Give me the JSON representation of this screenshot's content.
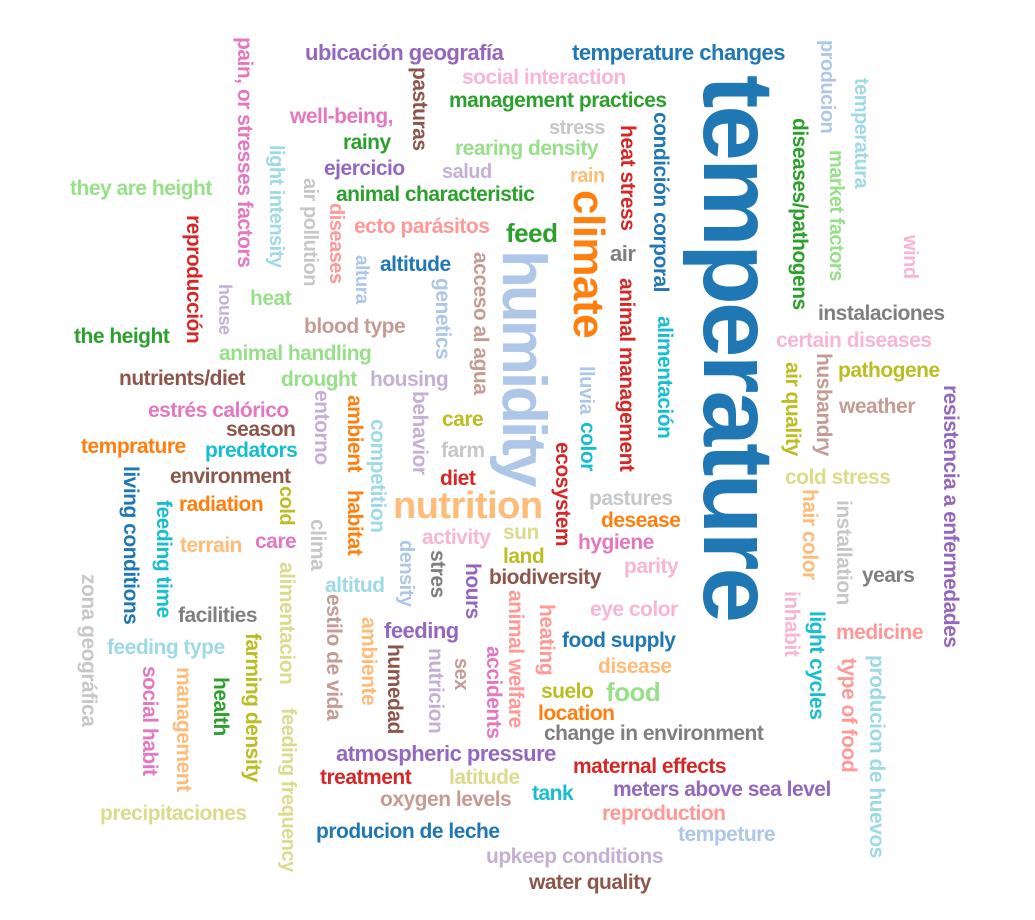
{
  "words": [
    {
      "text": "temperature",
      "color": "#1f77b4",
      "vertical": true
    },
    {
      "text": "humidity",
      "color": "#aec7e8",
      "vertical": true
    },
    {
      "text": "climate",
      "color": "#ff7f0e",
      "vertical": true
    },
    {
      "text": "nutrition",
      "color": "#ffbb78",
      "vertical": false
    },
    {
      "text": "ubicación geografía",
      "color": "#9467bd",
      "vertical": false
    },
    {
      "text": "temperature changes",
      "color": "#1f77b4",
      "vertical": false
    },
    {
      "text": "social interaction",
      "color": "#f7b6d2",
      "vertical": false
    },
    {
      "text": "management practices",
      "color": "#2ca02c",
      "vertical": false
    },
    {
      "text": "well-being,",
      "color": "#e377c2",
      "vertical": false
    },
    {
      "text": "stress",
      "color": "#c7c7c7",
      "vertical": false
    },
    {
      "text": "rainy",
      "color": "#2ca02c",
      "vertical": false
    },
    {
      "text": "rearing density",
      "color": "#98df8a",
      "vertical": false
    },
    {
      "text": "ejercicio",
      "color": "#9467bd",
      "vertical": false
    },
    {
      "text": "salud",
      "color": "#c5b0d5",
      "vertical": false
    },
    {
      "text": "rain",
      "color": "#ffbb78",
      "vertical": false
    },
    {
      "text": "they are height",
      "color": "#98df8a",
      "vertical": false
    },
    {
      "text": "animal characteristic",
      "color": "#2ca02c",
      "vertical": false
    },
    {
      "text": "ecto parásitos",
      "color": "#ff9896",
      "vertical": false
    },
    {
      "text": "feed",
      "color": "#2ca02c",
      "vertical": false
    },
    {
      "text": "air",
      "color": "#7f7f7f",
      "vertical": false
    },
    {
      "text": "altitude",
      "color": "#1f77b4",
      "vertical": false
    },
    {
      "text": "heat",
      "color": "#98df8a",
      "vertical": false
    },
    {
      "text": "blood type",
      "color": "#c49c94",
      "vertical": false
    },
    {
      "text": "the height",
      "color": "#2ca02c",
      "vertical": false
    },
    {
      "text": "animal handling",
      "color": "#98df8a",
      "vertical": false
    },
    {
      "text": "nutrients/diet",
      "color": "#8c564b",
      "vertical": false
    },
    {
      "text": "drought",
      "color": "#98df8a",
      "vertical": false
    },
    {
      "text": "housing",
      "color": "#c5b0d5",
      "vertical": false
    },
    {
      "text": "estrés calórico",
      "color": "#e377c2",
      "vertical": false
    },
    {
      "text": "season",
      "color": "#8c564b",
      "vertical": false
    },
    {
      "text": "care",
      "color": "#bcbd22",
      "vertical": false
    },
    {
      "text": "temprature",
      "color": "#ff7f0e",
      "vertical": false
    },
    {
      "text": "predators",
      "color": "#17becf",
      "vertical": false
    },
    {
      "text": "farm",
      "color": "#c7c7c7",
      "vertical": false
    },
    {
      "text": "environment",
      "color": "#8c564b",
      "vertical": false
    },
    {
      "text": "diet",
      "color": "#d62728",
      "vertical": false
    },
    {
      "text": "radiation",
      "color": "#ff7f0e",
      "vertical": false
    },
    {
      "text": "activity",
      "color": "#f7b6d2",
      "vertical": false
    },
    {
      "text": "sun",
      "color": "#dbdb8d",
      "vertical": false
    },
    {
      "text": "care",
      "color": "#e377c2",
      "vertical": false
    },
    {
      "text": "terrain",
      "color": "#ffbb78",
      "vertical": false
    },
    {
      "text": "land",
      "color": "#bcbd22",
      "vertical": false
    },
    {
      "text": "altitud",
      "color": "#9edae5",
      "vertical": false
    },
    {
      "text": "biodiversity",
      "color": "#8c564b",
      "vertical": false
    },
    {
      "text": "hygiene",
      "color": "#e377c2",
      "vertical": false
    },
    {
      "text": "parity",
      "color": "#f7b6d2",
      "vertical": false
    },
    {
      "text": "pastures",
      "color": "#c7c7c7",
      "vertical": false
    },
    {
      "text": "desease",
      "color": "#ff7f0e",
      "vertical": false
    },
    {
      "text": "facilities",
      "color": "#7f7f7f",
      "vertical": false
    },
    {
      "text": "feeding",
      "color": "#9467bd",
      "vertical": false
    },
    {
      "text": "feeding type",
      "color": "#9edae5",
      "vertical": false
    },
    {
      "text": "eye color",
      "color": "#f7b6d2",
      "vertical": false
    },
    {
      "text": "food supply",
      "color": "#1f77b4",
      "vertical": false
    },
    {
      "text": "disease",
      "color": "#ffbb78",
      "vertical": false
    },
    {
      "text": "suelo",
      "color": "#bcbd22",
      "vertical": false
    },
    {
      "text": "food",
      "color": "#98df8a",
      "vertical": false
    },
    {
      "text": "location",
      "color": "#ff7f0e",
      "vertical": false
    },
    {
      "text": "change in environment",
      "color": "#7f7f7f",
      "vertical": false
    },
    {
      "text": "atmospheric pressure",
      "color": "#9467bd",
      "vertical": false
    },
    {
      "text": "treatment",
      "color": "#d62728",
      "vertical": false
    },
    {
      "text": "latitude",
      "color": "#dbdb8d",
      "vertical": false
    },
    {
      "text": "maternal effects",
      "color": "#d62728",
      "vertical": false
    },
    {
      "text": "oxygen levels",
      "color": "#c49c94",
      "vertical": false
    },
    {
      "text": "tank",
      "color": "#17becf",
      "vertical": false
    },
    {
      "text": "meters above sea level",
      "color": "#9467bd",
      "vertical": false
    },
    {
      "text": "precipitaciones",
      "color": "#dbdb8d",
      "vertical": false
    },
    {
      "text": "reproduction",
      "color": "#ff9896",
      "vertical": false
    },
    {
      "text": "producion de leche",
      "color": "#1f77b4",
      "vertical": false
    },
    {
      "text": "tempeture",
      "color": "#aec7e8",
      "vertical": false
    },
    {
      "text": "upkeep conditions",
      "color": "#c5b0d5",
      "vertical": false
    },
    {
      "text": "water quality",
      "color": "#8c564b",
      "vertical": false
    },
    {
      "text": "instalaciones",
      "color": "#7f7f7f",
      "vertical": false
    },
    {
      "text": "certain diseases",
      "color": "#f7b6d2",
      "vertical": false
    },
    {
      "text": "pathogene",
      "color": "#bcbd22",
      "vertical": false
    },
    {
      "text": "weather",
      "color": "#c49c94",
      "vertical": false
    },
    {
      "text": "cold stress",
      "color": "#dbdb8d",
      "vertical": false
    },
    {
      "text": "years",
      "color": "#7f7f7f",
      "vertical": false
    },
    {
      "text": "medicine",
      "color": "#ff9896",
      "vertical": false
    },
    {
      "text": "pain, or stresses factors",
      "color": "#e377c2",
      "vertical": true
    },
    {
      "text": "pasturas",
      "color": "#8c564b",
      "vertical": true
    },
    {
      "text": "light intensity",
      "color": "#9edae5",
      "vertical": true
    },
    {
      "text": "air pollution",
      "color": "#c7c7c7",
      "vertical": true
    },
    {
      "text": "diseases",
      "color": "#ff9896",
      "vertical": true
    },
    {
      "text": "altura",
      "color": "#aec7e8",
      "vertical": true
    },
    {
      "text": "genetics",
      "color": "#aec7e8",
      "vertical": true
    },
    {
      "text": "acceso al agua",
      "color": "#c49c94",
      "vertical": true
    },
    {
      "text": "reproducción",
      "color": "#d62728",
      "vertical": true
    },
    {
      "text": "house",
      "color": "#c5b0d5",
      "vertical": true
    },
    {
      "text": "heat stress",
      "color": "#d62728",
      "vertical": true
    },
    {
      "text": "condición corporal",
      "color": "#1f77b4",
      "vertical": true
    },
    {
      "text": "animal management",
      "color": "#d62728",
      "vertical": true
    },
    {
      "text": "alimentación",
      "color": "#17becf",
      "vertical": true
    },
    {
      "text": "lluvia",
      "color": "#aec7e8",
      "vertical": true
    },
    {
      "text": "color",
      "color": "#17becf",
      "vertical": true
    },
    {
      "text": "ecosystem",
      "color": "#d62728",
      "vertical": true
    },
    {
      "text": "producion",
      "color": "#aec7e8",
      "vertical": true
    },
    {
      "text": "temperatura",
      "color": "#9edae5",
      "vertical": true
    },
    {
      "text": "diseases/pathogens",
      "color": "#2ca02c",
      "vertical": true
    },
    {
      "text": "market factors",
      "color": "#98df8a",
      "vertical": true
    },
    {
      "text": "wind",
      "color": "#f7b6d2",
      "vertical": true
    },
    {
      "text": "air quality",
      "color": "#bcbd22",
      "vertical": true
    },
    {
      "text": "husbandry",
      "color": "#c49c94",
      "vertical": true
    },
    {
      "text": "resistencia a enfermedades",
      "color": "#9467bd",
      "vertical": true
    },
    {
      "text": "entorno",
      "color": "#c5b0d5",
      "vertical": true
    },
    {
      "text": "ambient",
      "color": "#ff7f0e",
      "vertical": true
    },
    {
      "text": "competition",
      "color": "#9edae5",
      "vertical": true
    },
    {
      "text": "behavior",
      "color": "#c5b0d5",
      "vertical": true
    },
    {
      "text": "habitat",
      "color": "#ff7f0e",
      "vertical": true
    },
    {
      "text": "living conditions",
      "color": "#1f77b4",
      "vertical": true
    },
    {
      "text": "feeding time",
      "color": "#17becf",
      "vertical": true
    },
    {
      "text": "cold",
      "color": "#bcbd22",
      "vertical": true
    },
    {
      "text": "clima",
      "color": "#c7c7c7",
      "vertical": true
    },
    {
      "text": "density",
      "color": "#aec7e8",
      "vertical": true
    },
    {
      "text": "stres",
      "color": "#7f7f7f",
      "vertical": true
    },
    {
      "text": "hours",
      "color": "#9467bd",
      "vertical": true
    },
    {
      "text": "hair color",
      "color": "#ffbb78",
      "vertical": true
    },
    {
      "text": "installation",
      "color": "#c7c7c7",
      "vertical": true
    },
    {
      "text": "zona geográfica",
      "color": "#c7c7c7",
      "vertical": true
    },
    {
      "text": "alimentacion",
      "color": "#dbdb8d",
      "vertical": true
    },
    {
      "text": "estilo de vida",
      "color": "#c49c94",
      "vertical": true
    },
    {
      "text": "ambiente",
      "color": "#ffbb78",
      "vertical": true
    },
    {
      "text": "humedad",
      "color": "#8c564b",
      "vertical": true
    },
    {
      "text": "nutricion",
      "color": "#c5b0d5",
      "vertical": true
    },
    {
      "text": "sex",
      "color": "#c49c94",
      "vertical": true
    },
    {
      "text": "heating",
      "color": "#ff9896",
      "vertical": true
    },
    {
      "text": "animal welfare",
      "color": "#ff9896",
      "vertical": true
    },
    {
      "text": "accidents",
      "color": "#e377c2",
      "vertical": true
    },
    {
      "text": "inhabit",
      "color": "#f7b6d2",
      "vertical": true
    },
    {
      "text": "light cycles",
      "color": "#17becf",
      "vertical": true
    },
    {
      "text": "type of food",
      "color": "#ff9896",
      "vertical": true
    },
    {
      "text": "producion de huevos",
      "color": "#9edae5",
      "vertical": true
    },
    {
      "text": "social habit",
      "color": "#e377c2",
      "vertical": true
    },
    {
      "text": "management",
      "color": "#ffbb78",
      "vertical": true
    },
    {
      "text": "health",
      "color": "#2ca02c",
      "vertical": true
    },
    {
      "text": "farming density",
      "color": "#bcbd22",
      "vertical": true
    },
    {
      "text": "feeding frequency",
      "color": "#dbdb8d",
      "vertical": true
    }
  ]
}
